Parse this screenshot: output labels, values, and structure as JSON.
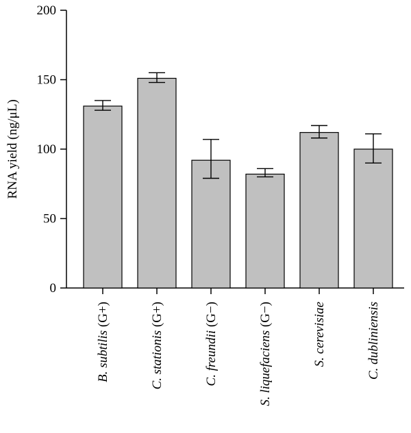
{
  "chart_data": {
    "type": "bar",
    "ylabel": "RNA yield (ng/μL)",
    "ylim": [
      0,
      200
    ],
    "yticks": [
      0,
      50,
      100,
      150,
      200
    ],
    "grid": false,
    "categories": [
      {
        "italic": "B. subtilis",
        "suffix": " (G+)"
      },
      {
        "italic": "C. stationis",
        "suffix": " (G+)"
      },
      {
        "italic": "C. freundii",
        "suffix": " (G−)"
      },
      {
        "italic": "S. liquefaciens",
        "suffix": " (G−)"
      },
      {
        "italic": "S. cerevisiae",
        "suffix": ""
      },
      {
        "italic": "C. dubliniensis",
        "suffix": ""
      }
    ],
    "values": [
      131,
      151,
      92,
      82,
      112,
      100
    ],
    "errors": [
      [
        128,
        135
      ],
      [
        148,
        155
      ],
      [
        79,
        107
      ],
      [
        80,
        86
      ],
      [
        108,
        117
      ],
      [
        90,
        111
      ]
    ],
    "colors": {
      "bar": "#c0c0c0",
      "edge": "#000000"
    }
  }
}
